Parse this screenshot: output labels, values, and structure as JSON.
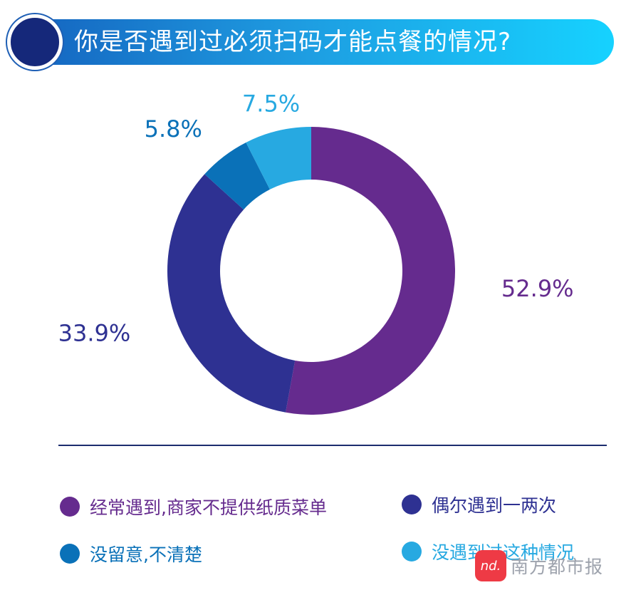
{
  "chart_data": {
    "type": "pie",
    "title": "你是否遇到过必须扫码才能点餐的情况?",
    "series": [
      {
        "name": "",
        "values": [
          52.9,
          33.9,
          5.8,
          7.5
        ]
      }
    ],
    "categories": [
      "经常遇到,商家不提供纸质菜单",
      "偶尔遇到一两次",
      "没留意,不清楚",
      "没遇到过这种情况"
    ],
    "data_labels": [
      "52.9%",
      "33.9%",
      "5.8%",
      "7.5%"
    ],
    "colors": [
      "#652b8e",
      "#2e3192",
      "#0a71b8",
      "#27a9e1"
    ],
    "legend_position": "bottom",
    "style": "donut"
  },
  "watermark": {
    "logo_text": "nd.",
    "text": "南方都市报"
  }
}
